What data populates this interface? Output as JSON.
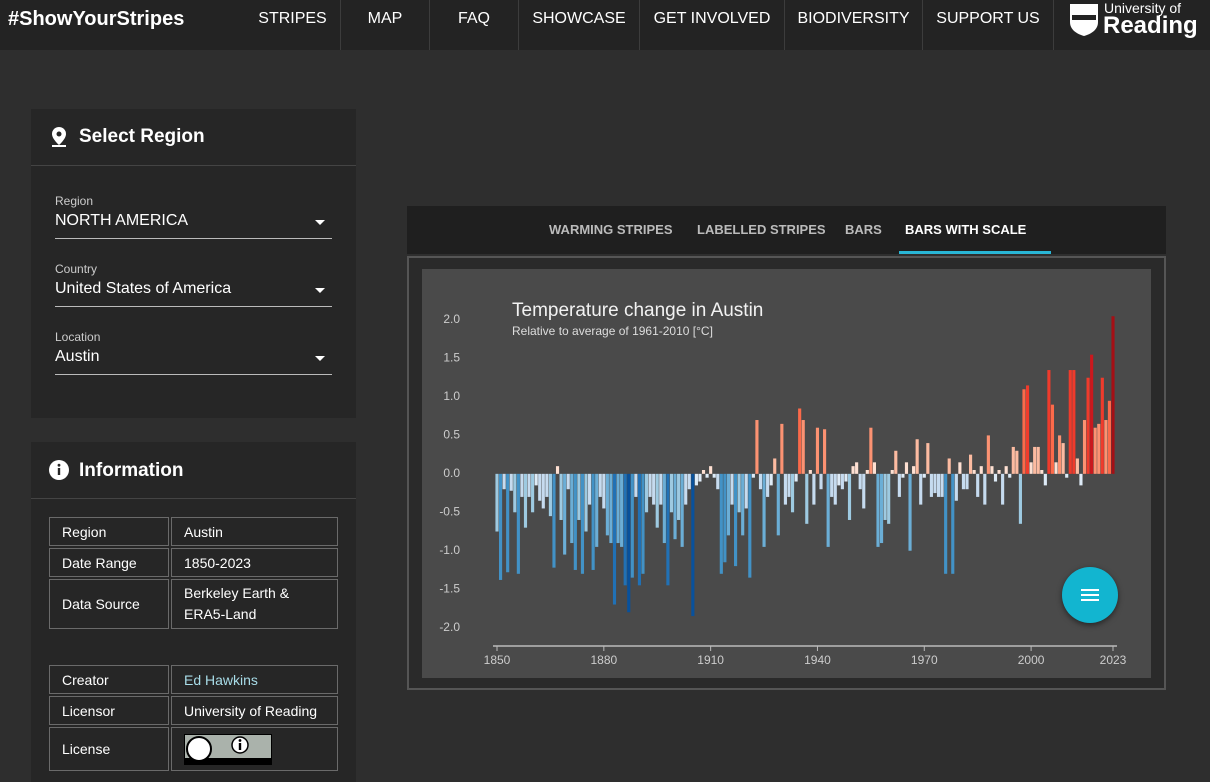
{
  "header": {
    "brand": "#ShowYourStripes",
    "nav": [
      "STRIPES",
      "MAP",
      "FAQ",
      "SHOWCASE",
      "GET INVOLVED",
      "BIODIVERSITY",
      "SUPPORT US"
    ],
    "logo": [
      "University of",
      "Reading"
    ]
  },
  "select_region": {
    "title": "Select Region",
    "fields": [
      {
        "label": "Region",
        "value": "NORTH AMERICA"
      },
      {
        "label": "Country",
        "value": "United States of America"
      },
      {
        "label": "Location",
        "value": "Austin"
      }
    ]
  },
  "information": {
    "title": "Information",
    "rows": [
      [
        "Region",
        "Austin"
      ],
      [
        "Date Range",
        "1850-2023"
      ],
      [
        "Data Source",
        "Berkeley Earth & ERA5-Land"
      ]
    ],
    "credits": [
      [
        "Creator",
        "Ed Hawkins"
      ],
      [
        "Licensor",
        "University of Reading"
      ],
      [
        "License"
      ]
    ]
  },
  "tabs": [
    "WARMING STRIPES",
    "LABELLED STRIPES",
    "BARS",
    "BARS WITH SCALE"
  ],
  "chart_data": {
    "type": "bar",
    "title": "Temperature change in Austin",
    "subtitle": "Relative to average of 1961-2010  [°C]",
    "x": [
      1850,
      1851,
      1852,
      1853,
      1854,
      1855,
      1856,
      1857,
      1858,
      1859,
      1860,
      1861,
      1862,
      1863,
      1864,
      1865,
      1866,
      1867,
      1868,
      1869,
      1870,
      1871,
      1872,
      1873,
      1874,
      1875,
      1876,
      1877,
      1878,
      1879,
      1880,
      1881,
      1882,
      1883,
      1884,
      1885,
      1886,
      1887,
      1888,
      1889,
      1890,
      1891,
      1892,
      1893,
      1894,
      1895,
      1896,
      1897,
      1898,
      1899,
      1900,
      1901,
      1902,
      1903,
      1904,
      1905,
      1906,
      1907,
      1908,
      1909,
      1910,
      1911,
      1912,
      1913,
      1914,
      1915,
      1916,
      1917,
      1918,
      1919,
      1920,
      1921,
      1922,
      1923,
      1924,
      1925,
      1926,
      1927,
      1928,
      1929,
      1930,
      1931,
      1932,
      1933,
      1934,
      1935,
      1936,
      1937,
      1938,
      1939,
      1940,
      1941,
      1942,
      1943,
      1944,
      1945,
      1946,
      1947,
      1948,
      1949,
      1950,
      1951,
      1952,
      1953,
      1954,
      1955,
      1956,
      1957,
      1958,
      1959,
      1960,
      1961,
      1962,
      1963,
      1964,
      1965,
      1966,
      1967,
      1968,
      1969,
      1970,
      1971,
      1972,
      1973,
      1974,
      1975,
      1976,
      1977,
      1978,
      1979,
      1980,
      1981,
      1982,
      1983,
      1984,
      1985,
      1986,
      1987,
      1988,
      1989,
      1990,
      1991,
      1992,
      1993,
      1994,
      1995,
      1996,
      1997,
      1998,
      1999,
      2000,
      2001,
      2002,
      2003,
      2004,
      2005,
      2006,
      2007,
      2008,
      2009,
      2010,
      2011,
      2012,
      2013,
      2014,
      2015,
      2016,
      2017,
      2018,
      2019,
      2020,
      2021,
      2022,
      2023
    ],
    "values": [
      -0.75,
      -1.38,
      -0.2,
      -1.28,
      -0.22,
      -0.5,
      -1.3,
      -0.3,
      -0.7,
      -0.3,
      -0.5,
      -0.15,
      -0.35,
      -0.45,
      -0.3,
      -0.55,
      -1.22,
      0.1,
      -0.6,
      -1.05,
      -0.2,
      -0.9,
      -1.25,
      -0.6,
      -1.3,
      -0.75,
      -0.4,
      -1.25,
      -0.95,
      -0.3,
      -0.45,
      -0.8,
      -0.9,
      -1.7,
      -0.9,
      -0.95,
      -1.45,
      -1.8,
      -1.35,
      -0.3,
      -1.45,
      -1.3,
      -0.5,
      -0.3,
      -0.4,
      -0.7,
      -0.4,
      -0.9,
      -1.45,
      -0.5,
      -0.85,
      -0.6,
      -0.95,
      -0.4,
      -0.2,
      -1.85,
      -0.15,
      -0.1,
      0.05,
      -0.05,
      0.1,
      -0.05,
      -0.2,
      -1.3,
      -1.15,
      -0.8,
      -0.4,
      -1.2,
      -0.5,
      -0.8,
      -0.45,
      -1.35,
      -0.05,
      0.7,
      -0.2,
      -0.95,
      -0.3,
      -0.15,
      0.2,
      -0.8,
      0.65,
      -0.4,
      -0.3,
      -0.5,
      -0.1,
      0.85,
      0.7,
      -0.65,
      0.05,
      -0.4,
      0.6,
      -0.2,
      0.58,
      -0.95,
      -0.3,
      -0.4,
      -0.15,
      -0.2,
      -0.1,
      -0.6,
      0.1,
      0.15,
      -0.2,
      -0.45,
      0.05,
      0.6,
      0.15,
      -0.95,
      -0.9,
      -0.6,
      -0.65,
      0.05,
      0.3,
      -0.3,
      -0.05,
      0.15,
      -1.0,
      0.1,
      0.45,
      -0.4,
      -0.05,
      0.4,
      -0.3,
      -0.25,
      -0.3,
      -0.3,
      -1.3,
      0.2,
      -1.3,
      -0.35,
      0.15,
      -0.2,
      -0.2,
      0.25,
      0.05,
      -0.3,
      0.1,
      -0.4,
      0.5,
      0.1,
      -0.1,
      0.05,
      -0.4,
      0.1,
      -0.05,
      0.35,
      0.3,
      -0.65,
      1.1,
      1.15,
      0.15,
      0.35,
      0.35,
      0.05,
      -0.15,
      1.35,
      0.9,
      0.15,
      0.5,
      0.4,
      -0.05,
      1.35,
      1.35,
      0.2,
      -0.15,
      0.7,
      1.25,
      1.55,
      0.6,
      0.65,
      1.25,
      0.7,
      0.95,
      2.05
    ],
    "colormap": [
      "#08306b",
      "#08519c",
      "#2171b5",
      "#4292c6",
      "#6baed6",
      "#9ecae1",
      "#c6dbef",
      "#deebf7",
      "#fee0d2",
      "#fcbba1",
      "#fc9272",
      "#fb6a4a",
      "#ef3b2c",
      "#cb181d",
      "#a50f15",
      "#67000d"
    ],
    "xlim": [
      1850,
      2023
    ],
    "xticks": [
      1850,
      1880,
      1910,
      1940,
      1970,
      2000,
      2023
    ],
    "ylim": [
      -2.2,
      2.3
    ],
    "yticks": [
      {
        "value": 2,
        "label": "2.0"
      },
      1.5,
      {
        "value": 1,
        "label": "1.0"
      },
      0.5,
      {
        "value": 0,
        "label": "0.0"
      },
      -0.5,
      {
        "value": -1,
        "label": "-1.0"
      },
      -1.5,
      {
        "value": -2,
        "label": "-2.0"
      }
    ]
  }
}
